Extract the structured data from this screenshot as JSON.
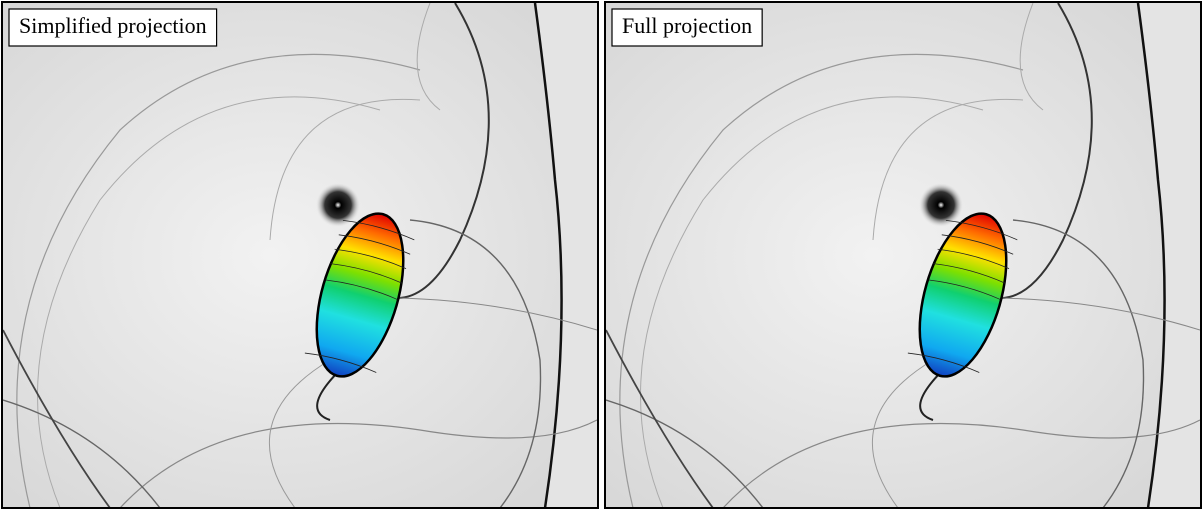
{
  "panels": [
    {
      "label": "Simplified projection"
    },
    {
      "label": "Full projection"
    }
  ]
}
